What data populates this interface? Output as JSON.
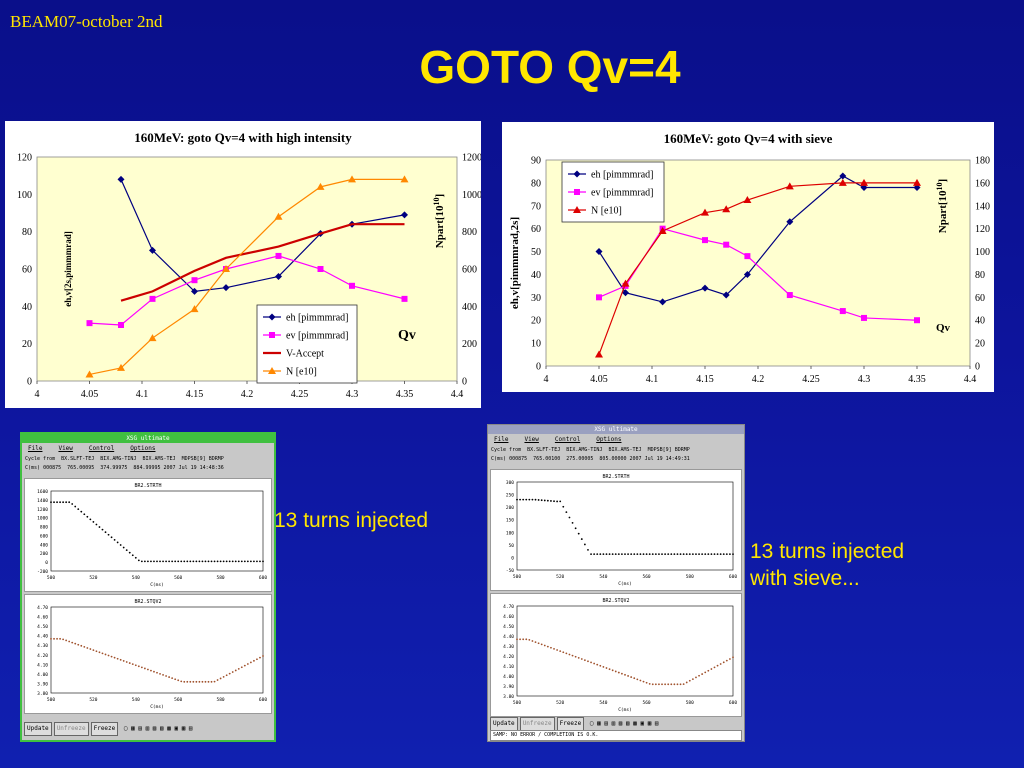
{
  "slide": {
    "header_tag": "BEAM07-october 2nd",
    "title": "GOTO Qv=4",
    "caption_left": "13 turns injected",
    "caption_right_1": "13 turns injected",
    "caption_right_2": "with sieve..."
  },
  "colors": {
    "eh": "#000080",
    "ev": "#ff00ff",
    "vaccept": "#cc0000",
    "n": "#ff8800",
    "n_sieve": "#dd0000",
    "plot_bg": "#ffffd0"
  },
  "chart_data": [
    {
      "type": "line",
      "title": "160MeV: goto Qv=4 with high intensity",
      "xlabel": "Qv",
      "ylabel": "eh,v[2s,pimmmrad]",
      "y2label": "Npart[10^10]",
      "xlim": [
        4,
        4.4
      ],
      "ylim": [
        0,
        120
      ],
      "y2lim": [
        0,
        1200
      ],
      "xticks": [
        "4",
        "4.05",
        "4.1",
        "4.15",
        "4.2",
        "4.25",
        "4.3",
        "4.35",
        "4.4"
      ],
      "yticks": [
        "0",
        "20",
        "40",
        "60",
        "80",
        "100",
        "120"
      ],
      "y2ticks": [
        "0",
        "200",
        "400",
        "600",
        "800",
        "1000",
        "1200"
      ],
      "legend": "bottom-right",
      "series": [
        {
          "name": "eh [pimmmrad]",
          "axis": "left",
          "marker": "diamond",
          "color": "#000080",
          "x": [
            4.08,
            4.11,
            4.15,
            4.18,
            4.23,
            4.27,
            4.3,
            4.35
          ],
          "y": [
            108,
            70,
            48,
            50,
            56,
            79,
            84,
            89
          ]
        },
        {
          "name": "ev [pimmmrad]",
          "axis": "left",
          "marker": "square",
          "color": "#ff00ff",
          "x": [
            4.05,
            4.08,
            4.11,
            4.15,
            4.18,
            4.23,
            4.27,
            4.3,
            4.35
          ],
          "y": [
            31,
            30,
            44,
            54,
            60,
            67,
            60,
            51,
            44
          ]
        },
        {
          "name": "V-Accept",
          "axis": "left",
          "marker": "none",
          "color": "#cc0000",
          "x": [
            4.08,
            4.11,
            4.15,
            4.18,
            4.23,
            4.27,
            4.3,
            4.35
          ],
          "y": [
            43,
            48,
            59,
            66,
            72,
            79,
            84,
            84
          ]
        },
        {
          "name": "N [e10]",
          "axis": "right",
          "marker": "triangle",
          "color": "#ff8800",
          "x": [
            4.05,
            4.08,
            4.11,
            4.15,
            4.18,
            4.23,
            4.27,
            4.3,
            4.35
          ],
          "y": [
            35,
            70,
            230,
            385,
            600,
            880,
            1040,
            1080,
            1080
          ]
        }
      ]
    },
    {
      "type": "line",
      "title": "160MeV: goto Qv=4 with sieve",
      "xlabel": "Qv",
      "ylabel": "eh,v[pimmmrad,2s]",
      "y2label": "Npart[10^10]",
      "xlim": [
        4,
        4.4
      ],
      "ylim": [
        0,
        90
      ],
      "y2lim": [
        0,
        180
      ],
      "xticks": [
        "4",
        "4.05",
        "4.1",
        "4.15",
        "4.2",
        "4.25",
        "4.3",
        "4.35",
        "4.4"
      ],
      "yticks": [
        "0",
        "10",
        "20",
        "30",
        "40",
        "50",
        "60",
        "70",
        "80",
        "90"
      ],
      "y2ticks": [
        "0",
        "20",
        "40",
        "60",
        "80",
        "100",
        "120",
        "140",
        "160",
        "180"
      ],
      "legend": "top-left",
      "series": [
        {
          "name": "eh [pimmmrad]",
          "axis": "left",
          "marker": "diamond",
          "color": "#000080",
          "x": [
            4.05,
            4.075,
            4.11,
            4.15,
            4.17,
            4.19,
            4.23,
            4.28,
            4.3,
            4.35
          ],
          "y": [
            50,
            32,
            28,
            34,
            31,
            40,
            63,
            83,
            78,
            78
          ]
        },
        {
          "name": "ev [pimmmrad]",
          "axis": "left",
          "marker": "square",
          "color": "#ff00ff",
          "x": [
            4.05,
            4.075,
            4.11,
            4.15,
            4.17,
            4.19,
            4.23,
            4.28,
            4.3,
            4.35
          ],
          "y": [
            30,
            35,
            60,
            55,
            53,
            48,
            31,
            24,
            21,
            20
          ]
        },
        {
          "name": "N [e10]",
          "axis": "right",
          "marker": "triangle",
          "color": "#dd0000",
          "x": [
            4.05,
            4.075,
            4.11,
            4.15,
            4.17,
            4.19,
            4.23,
            4.28,
            4.3,
            4.35
          ],
          "y": [
            10,
            72,
            118,
            134,
            137,
            145,
            157,
            160,
            160,
            160
          ]
        }
      ]
    }
  ],
  "xsg_left": {
    "window_title": "XSG ultimate",
    "menu": [
      "File",
      "View",
      "Control",
      "Options"
    ],
    "info_row1": [
      "Cycle from",
      "BX.SLFT-TEJ",
      "BIX.AMG-TINJ",
      "BIX.AMS-TEJ",
      "MDPSB[9] BDRMP"
    ],
    "info_row2": [
      "C(ms)",
      "000875",
      "765.00095",
      "374.99975",
      "884.99995",
      "2007 Jul 19 14:48:36"
    ],
    "plot1_title": "BR2.STRTH",
    "plot1_yticks": [
      "1600",
      "1400",
      "1200",
      "1000",
      "800",
      "600",
      "400",
      "200",
      "0",
      "-200"
    ],
    "plot2_title": "BR2.STQV2",
    "plot2_yticks": [
      "4.70",
      "4.60",
      "4.50",
      "4.40",
      "4.30",
      "4.20",
      "4.10",
      "4.00",
      "3.90",
      "3.80"
    ],
    "xticks": [
      "500",
      "520",
      "540",
      "560",
      "580",
      "600"
    ],
    "xlabel": "C(ms)",
    "buttons": [
      "Update",
      "Unfreeze",
      "Freeze"
    ]
  },
  "xsg_right": {
    "window_title": "XSG ultimate",
    "menu": [
      "File",
      "View",
      "Control",
      "Options"
    ],
    "info_row1": [
      "Cycle from",
      "BX.SLFT-TEJ",
      "BIX.AMG-TINJ",
      "BIX.AMS-TEJ",
      "MDPSB[9] BDRMP"
    ],
    "info_row2": [
      "C(ms)",
      "000875",
      "765.00100",
      "275.00005",
      "805.00000",
      "2007 Jul 19 14:49:31"
    ],
    "plot1_title": "BR2.STRTH",
    "plot1_yticks": [
      "300",
      "250",
      "200",
      "150",
      "100",
      "50",
      "0",
      "-50"
    ],
    "plot2_title": "BR2.STQV2",
    "plot2_yticks": [
      "4.70",
      "4.60",
      "4.50",
      "4.40",
      "4.30",
      "4.20",
      "4.10",
      "4.00",
      "3.90",
      "3.80"
    ],
    "xticks": [
      "500",
      "520",
      "540",
      "560",
      "580",
      "600"
    ],
    "xlabel": "C(ms)",
    "buttons": [
      "Update",
      "Unfreeze",
      "Freeze"
    ],
    "status": "SAMP: NO ERROR / COMPLETION IS O.K."
  }
}
